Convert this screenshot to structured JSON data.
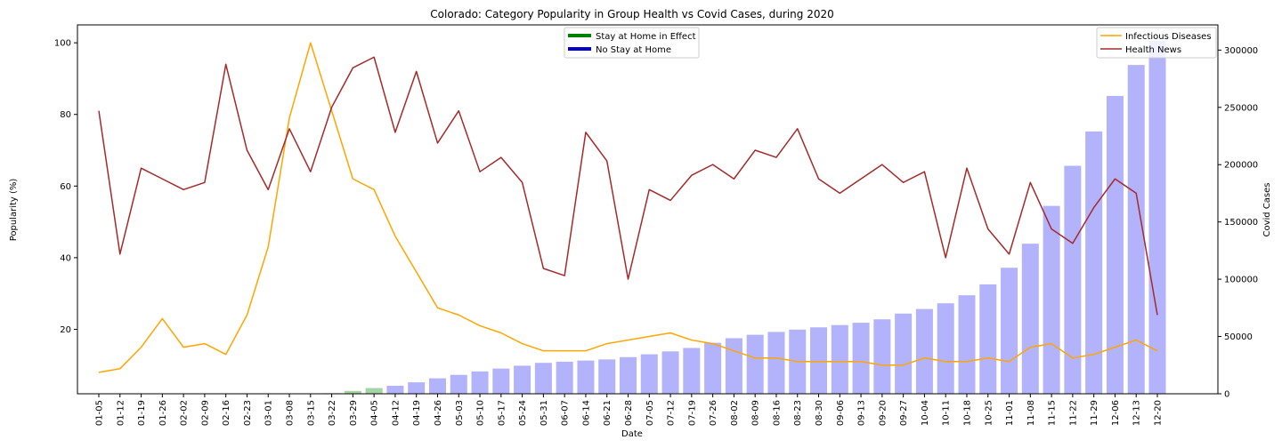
{
  "chart_data": {
    "type": "bar+line",
    "title": "Colorado: Category Popularity in Group Health vs Covid Cases, during 2020",
    "xlabel": "Date",
    "ylabel": "Popularity (%)",
    "y2label": "Covid Cases",
    "ylim": [
      2,
      105
    ],
    "y_ticks": [
      20,
      40,
      60,
      80,
      100
    ],
    "y2lim": [
      0,
      322000
    ],
    "y2_ticks": [
      0,
      50000,
      100000,
      150000,
      200000,
      250000,
      300000
    ],
    "categories": [
      "01-05",
      "01-12",
      "01-19",
      "01-26",
      "02-02",
      "02-09",
      "02-16",
      "02-23",
      "03-01",
      "03-08",
      "03-15",
      "03-22",
      "03-29",
      "04-05",
      "04-12",
      "04-19",
      "04-26",
      "05-03",
      "05-10",
      "05-17",
      "05-24",
      "05-31",
      "06-07",
      "06-14",
      "06-21",
      "06-28",
      "07-05",
      "07-12",
      "07-19",
      "07-26",
      "08-02",
      "08-09",
      "08-16",
      "08-23",
      "08-30",
      "09-06",
      "09-13",
      "09-20",
      "09-27",
      "10-04",
      "10-11",
      "10-18",
      "10-25",
      "11-01",
      "11-08",
      "11-15",
      "11-22",
      "11-29",
      "12-06",
      "12-13",
      "12-20"
    ],
    "cases": [
      0,
      0,
      0,
      0,
      0,
      0,
      0,
      0,
      0,
      0,
      0,
      500,
      2500,
      5000,
      7000,
      10000,
      13500,
      16500,
      19500,
      22000,
      24500,
      27000,
      28000,
      29000,
      30000,
      32000,
      34500,
      37000,
      40000,
      44500,
      48500,
      51500,
      54000,
      56000,
      58000,
      60000,
      62000,
      65000,
      70000,
      74000,
      79000,
      86000,
      95500,
      110000,
      131000,
      164000,
      199000,
      229000,
      260000,
      287000,
      308000
    ],
    "stay_at_home_weeks": [
      "03-29",
      "04-05"
    ],
    "series": [
      {
        "name": "Infectious Diseases",
        "color": "#ffa500",
        "values": [
          8,
          9,
          15,
          23,
          15,
          16,
          13,
          24,
          43,
          79,
          100,
          81,
          62,
          59,
          46,
          36,
          26,
          24,
          21,
          19,
          16,
          14,
          14,
          14,
          16,
          17,
          18,
          19,
          17,
          16,
          14,
          12,
          12,
          11,
          11,
          11,
          11,
          10,
          10,
          12,
          11,
          11,
          12,
          11,
          15,
          16,
          12,
          13,
          15,
          17,
          14
        ]
      },
      {
        "name": "Health News",
        "color": "#a52a2a",
        "values": [
          81,
          41,
          65,
          62,
          59,
          61,
          94,
          70,
          59,
          76,
          64,
          82,
          93,
          96,
          75,
          92,
          72,
          81,
          64,
          68,
          61,
          37,
          35,
          75,
          67,
          34,
          59,
          56,
          63,
          66,
          62,
          70,
          68,
          76,
          62,
          58,
          62,
          66,
          61,
          64,
          40,
          65,
          48,
          41,
          61,
          48,
          44,
          54,
          62,
          58,
          24
        ]
      }
    ],
    "legend_status": [
      {
        "label": "Stay at Home in Effect",
        "color": "#008000"
      },
      {
        "label": "No Stay at Home",
        "color": "#0000cd"
      }
    ],
    "bar_colors": {
      "stay_at_home": "#a3d6a3",
      "no_stay_at_home": "#b3b3fb"
    },
    "legend_placement": [
      "top-center",
      "top-right"
    ],
    "grid": false
  }
}
